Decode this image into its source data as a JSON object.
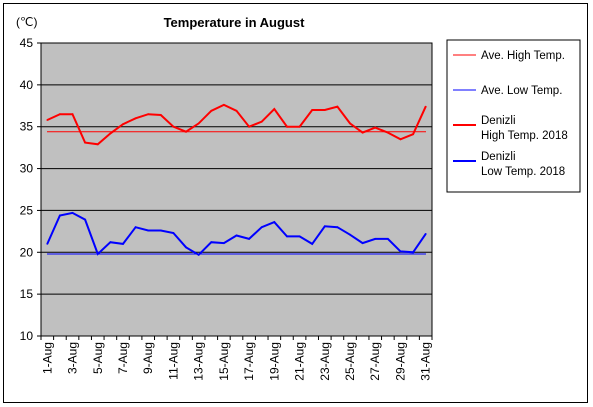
{
  "chart_data": {
    "type": "line",
    "title": "Temperature in August",
    "ylabel": "(℃)",
    "xlabel": "",
    "ylim": [
      10,
      45
    ],
    "yticks": [
      10,
      15,
      20,
      25,
      30,
      35,
      40,
      45
    ],
    "grid": true,
    "legend_position": "right",
    "x": [
      1,
      2,
      3,
      4,
      5,
      6,
      7,
      8,
      9,
      10,
      11,
      12,
      13,
      14,
      15,
      16,
      17,
      18,
      19,
      20,
      21,
      22,
      23,
      24,
      25,
      26,
      27,
      28,
      29,
      30,
      31
    ],
    "xtick_labels": [
      "1-Aug",
      "3-Aug",
      "5-Aug",
      "7-Aug",
      "9-Aug",
      "11-Aug",
      "13-Aug",
      "15-Aug",
      "17-Aug",
      "19-Aug",
      "21-Aug",
      "23-Aug",
      "25-Aug",
      "27-Aug",
      "29-Aug",
      "31-Aug"
    ],
    "series": [
      {
        "name": "Ave. High Temp.",
        "color": "#ff0000",
        "style": "thin",
        "values": [
          34.4,
          34.4,
          34.4,
          34.4,
          34.4,
          34.4,
          34.4,
          34.4,
          34.4,
          34.4,
          34.4,
          34.4,
          34.4,
          34.4,
          34.4,
          34.4,
          34.4,
          34.4,
          34.4,
          34.4,
          34.4,
          34.4,
          34.4,
          34.4,
          34.4,
          34.4,
          34.4,
          34.4,
          34.4,
          34.4,
          34.4
        ]
      },
      {
        "name": "Ave. Low Temp.",
        "color": "#0000ff",
        "style": "thin",
        "values": [
          19.8,
          19.8,
          19.8,
          19.8,
          19.8,
          19.8,
          19.8,
          19.8,
          19.8,
          19.8,
          19.8,
          19.8,
          19.8,
          19.8,
          19.8,
          19.8,
          19.8,
          19.8,
          19.8,
          19.8,
          19.8,
          19.8,
          19.8,
          19.8,
          19.8,
          19.8,
          19.8,
          19.8,
          19.8,
          19.8,
          19.8
        ]
      },
      {
        "name": "Denizli\nHigh Temp. 2018",
        "color": "#ff0000",
        "style": "thick",
        "values": [
          35.8,
          36.5,
          36.5,
          33.1,
          32.9,
          34.2,
          35.3,
          36.0,
          36.5,
          36.4,
          35.0,
          34.4,
          35.4,
          36.9,
          37.6,
          36.9,
          35.0,
          35.6,
          37.1,
          35.0,
          35.0,
          37.0,
          37.0,
          37.4,
          35.4,
          34.3,
          34.9,
          34.3,
          33.5,
          34.1,
          37.4
        ]
      },
      {
        "name": "Denizli\nLow Temp. 2018",
        "color": "#0000ff",
        "style": "thick",
        "values": [
          21.0,
          24.4,
          24.7,
          23.9,
          19.8,
          21.2,
          21.0,
          23.0,
          22.6,
          22.6,
          22.3,
          20.6,
          19.7,
          21.2,
          21.1,
          22.0,
          21.6,
          23.0,
          23.6,
          21.9,
          21.9,
          21.0,
          23.1,
          23.0,
          22.1,
          21.1,
          21.6,
          21.6,
          20.1,
          20.0,
          22.2
        ]
      }
    ]
  }
}
